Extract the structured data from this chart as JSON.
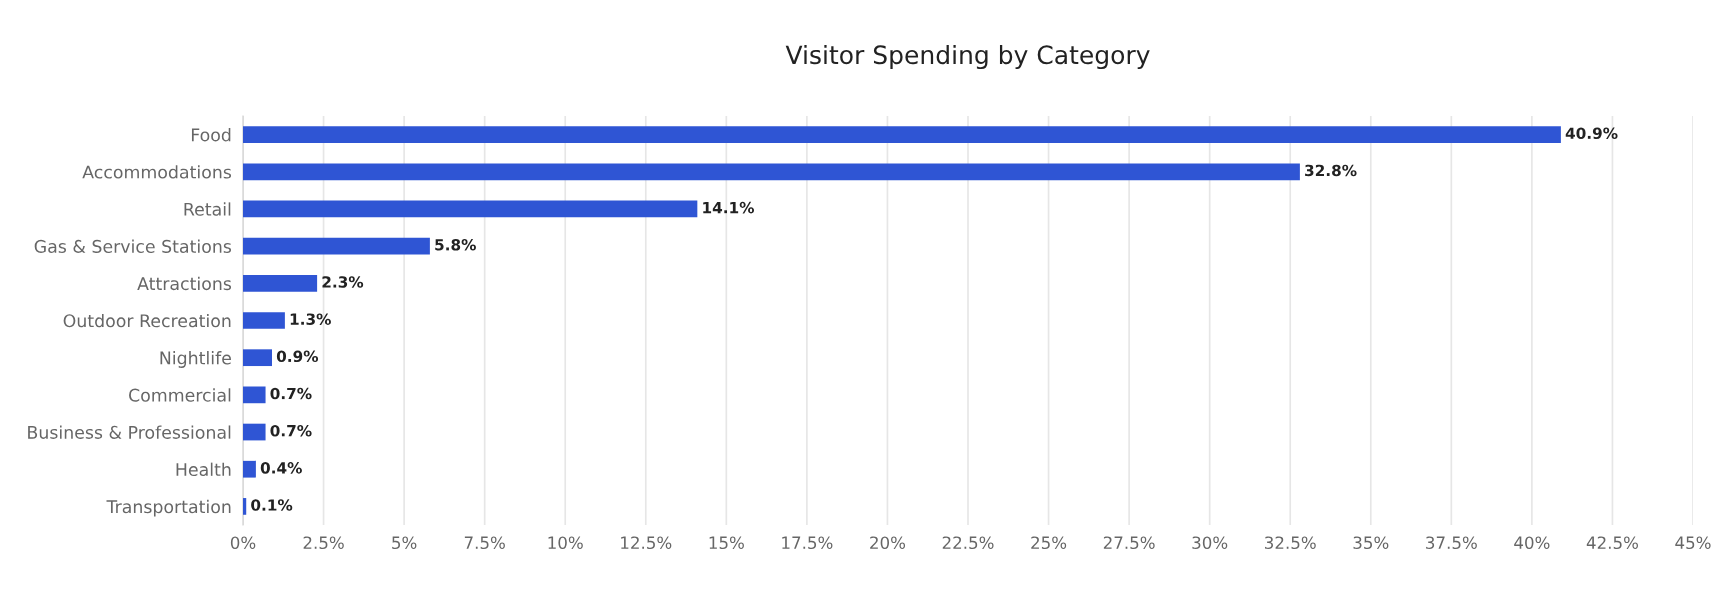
{
  "chart_data": {
    "type": "bar",
    "orientation": "horizontal",
    "title": "Visitor Spending by Category",
    "categories": [
      "Food",
      "Accommodations",
      "Retail",
      "Gas & Service Stations",
      "Attractions",
      "Outdoor Recreation",
      "Nightlife",
      "Commercial",
      "Business & Professional",
      "Health",
      "Transportation"
    ],
    "values": [
      40.9,
      32.8,
      14.1,
      5.8,
      2.3,
      1.3,
      0.9,
      0.7,
      0.7,
      0.4,
      0.1
    ],
    "value_labels": [
      "40.9%",
      "32.8%",
      "14.1%",
      "5.8%",
      "2.3%",
      "1.3%",
      "0.9%",
      "0.7%",
      "0.7%",
      "0.4%",
      "0.1%"
    ],
    "color": "#2f55d4",
    "xlim": [
      0,
      45
    ],
    "xticks": [
      {
        "value": 0,
        "label": "0%"
      },
      {
        "value": 2.5,
        "label": "2.5%"
      },
      {
        "value": 5,
        "label": "5%"
      },
      {
        "value": 7.5,
        "label": "7.5%"
      },
      {
        "value": 10,
        "label": "10%"
      },
      {
        "value": 12.5,
        "label": "12.5%"
      },
      {
        "value": 15,
        "label": "15%"
      },
      {
        "value": 17.5,
        "label": "17.5%"
      },
      {
        "value": 20,
        "label": "20%"
      },
      {
        "value": 22.5,
        "label": "22.5%"
      },
      {
        "value": 25,
        "label": "25%"
      },
      {
        "value": 27.5,
        "label": "27.5%"
      },
      {
        "value": 30,
        "label": "30%"
      },
      {
        "value": 32.5,
        "label": "32.5%"
      },
      {
        "value": 35,
        "label": "35%"
      },
      {
        "value": 37.5,
        "label": "37.5%"
      },
      {
        "value": 40,
        "label": "40%"
      },
      {
        "value": 42.5,
        "label": "42.5%"
      },
      {
        "value": 45,
        "label": "45%"
      }
    ],
    "grid": "x",
    "legend": false
  }
}
